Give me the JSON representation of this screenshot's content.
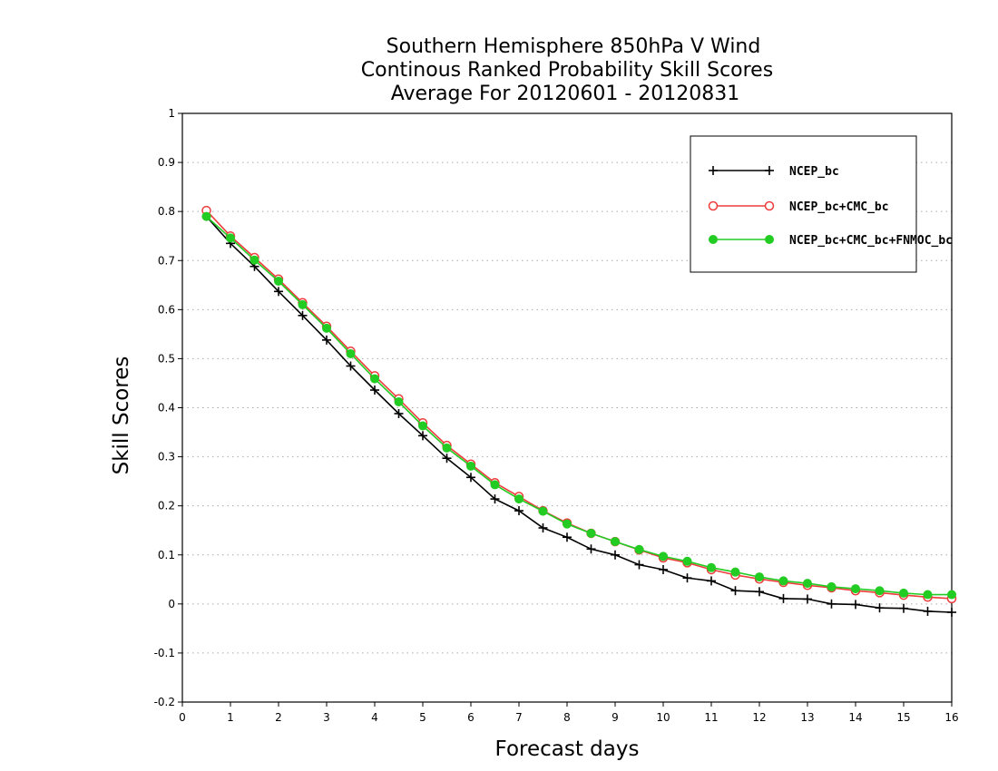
{
  "chart_data": {
    "type": "line",
    "title_lines": [
      "Southern Hemisphere 850hPa V Wind",
      "Continous Ranked Probability Skill Scores",
      "Average For 20120601 - 20120831"
    ],
    "xlabel": "Forecast days",
    "ylabel": "Skill Scores",
    "xlim": [
      0,
      16
    ],
    "ylim": [
      -0.2,
      1
    ],
    "x_ticks": [
      "0",
      "1",
      "2",
      "3",
      "4",
      "5",
      "6",
      "7",
      "8",
      "9",
      "10",
      "11",
      "12",
      "13",
      "14",
      "15",
      "16"
    ],
    "y_ticks": [
      "-0.2",
      "-0.1",
      "0",
      "0.1",
      "0.2",
      "0.3",
      "0.4",
      "0.5",
      "0.6",
      "0.7",
      "0.8",
      "0.9",
      "1"
    ],
    "grid": "horizontal-dotted",
    "legend_position": "top-right",
    "x": [
      0.5,
      1,
      1.5,
      2,
      2.5,
      3,
      3.5,
      4,
      4.5,
      5,
      5.5,
      6,
      6.5,
      7,
      7.5,
      8,
      8.5,
      9,
      9.5,
      10,
      10.5,
      11,
      11.5,
      12,
      12.5,
      13,
      13.5,
      14,
      14.5,
      15,
      15.5,
      16
    ],
    "series": [
      {
        "name": "NCEP_bc",
        "color": "#000000",
        "marker": "plus",
        "values": [
          0.79,
          0.735,
          0.688,
          0.637,
          0.588,
          0.538,
          0.485,
          0.436,
          0.388,
          0.343,
          0.297,
          0.258,
          0.214,
          0.19,
          0.155,
          0.136,
          0.112,
          0.1,
          0.08,
          0.07,
          0.053,
          0.047,
          0.027,
          0.025,
          0.011,
          0.01,
          0.0,
          -0.001,
          -0.008,
          -0.009,
          -0.015,
          -0.017
        ]
      },
      {
        "name": "NCEP_bc+CMC_bc",
        "color": "#ee3b3b",
        "marker": "open-circle",
        "values": [
          0.802,
          0.75,
          0.706,
          0.662,
          0.614,
          0.566,
          0.515,
          0.465,
          0.418,
          0.369,
          0.323,
          0.285,
          0.247,
          0.219,
          0.19,
          0.165,
          0.144,
          0.127,
          0.11,
          0.094,
          0.084,
          0.07,
          0.059,
          0.051,
          0.044,
          0.038,
          0.033,
          0.027,
          0.023,
          0.018,
          0.014,
          0.011
        ]
      },
      {
        "name": "NCEP_bc+CMC_bc+FNMOC_bc",
        "color": "#22cc22",
        "marker": "filled-circle",
        "values": [
          0.79,
          0.746,
          0.701,
          0.658,
          0.61,
          0.562,
          0.51,
          0.459,
          0.412,
          0.363,
          0.318,
          0.281,
          0.243,
          0.214,
          0.189,
          0.163,
          0.144,
          0.127,
          0.111,
          0.097,
          0.087,
          0.074,
          0.065,
          0.055,
          0.047,
          0.042,
          0.035,
          0.031,
          0.027,
          0.022,
          0.019,
          0.019
        ]
      }
    ]
  }
}
